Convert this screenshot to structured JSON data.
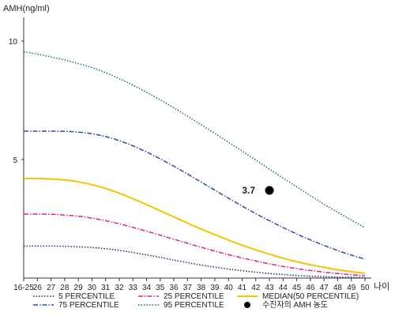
{
  "chart_data": {
    "type": "line",
    "title": "",
    "ylabel": "AMH(ng/ml)",
    "xlabel": "나이",
    "ylim": [
      0,
      11
    ],
    "yticks": [
      "10",
      "5"
    ],
    "ytick_values": [
      10,
      5
    ],
    "categories": [
      "16-25",
      "26",
      "27",
      "28",
      "29",
      "30",
      "31",
      "32",
      "33",
      "34",
      "35",
      "36",
      "37",
      "38",
      "39",
      "40",
      "41",
      "42",
      "43",
      "44",
      "45",
      "46",
      "47",
      "48",
      "49",
      "50"
    ],
    "series": [
      {
        "name": "5 PERCENTILE",
        "color": "#1f2a6b",
        "style": "dotted",
        "values": [
          1.35,
          1.35,
          1.35,
          1.34,
          1.32,
          1.29,
          1.24,
          1.17,
          1.08,
          0.98,
          0.87,
          0.76,
          0.65,
          0.55,
          0.46,
          0.38,
          0.31,
          0.25,
          0.19,
          0.15,
          0.11,
          0.08,
          0.06,
          0.04,
          0.03,
          0.02
        ]
      },
      {
        "name": "25 PERCENTILE",
        "color": "#e0218a",
        "style": "dashdot",
        "values": [
          2.7,
          2.7,
          2.69,
          2.66,
          2.61,
          2.53,
          2.42,
          2.29,
          2.14,
          1.98,
          1.81,
          1.64,
          1.47,
          1.3,
          1.14,
          0.99,
          0.85,
          0.72,
          0.6,
          0.49,
          0.4,
          0.32,
          0.25,
          0.19,
          0.14,
          0.1
        ]
      },
      {
        "name": "MEDIAN(50 PERCENTILE)",
        "color": "#f2c500",
        "style": "solid",
        "values": [
          4.2,
          4.2,
          4.18,
          4.14,
          4.06,
          3.94,
          3.78,
          3.58,
          3.35,
          3.1,
          2.84,
          2.58,
          2.32,
          2.07,
          1.83,
          1.6,
          1.39,
          1.19,
          1.01,
          0.84,
          0.69,
          0.56,
          0.45,
          0.35,
          0.27,
          0.2
        ]
      },
      {
        "name": "75 PERCENTILE",
        "color": "#2a4db5",
        "style": "dashdot",
        "values": [
          6.2,
          6.2,
          6.2,
          6.19,
          6.16,
          6.09,
          5.97,
          5.8,
          5.58,
          5.32,
          5.03,
          4.72,
          4.39,
          4.05,
          3.71,
          3.37,
          3.04,
          2.72,
          2.42,
          2.13,
          1.86,
          1.61,
          1.38,
          1.16,
          0.97,
          0.8
        ]
      },
      {
        "name": "95 PERCENTILE",
        "color": "#1a7a3a",
        "style": "dotted",
        "values": [
          9.55,
          9.45,
          9.33,
          9.2,
          9.05,
          8.88,
          8.67,
          8.42,
          8.14,
          7.84,
          7.52,
          7.18,
          6.83,
          6.47,
          6.1,
          5.73,
          5.36,
          4.98,
          4.6,
          4.22,
          3.85,
          3.48,
          3.12,
          2.78,
          2.45,
          2.12
        ]
      }
    ],
    "marker": {
      "name": "수진자의 AMH 농도",
      "x": "43",
      "y": 3.7,
      "label": "3.7",
      "color": "#000000"
    },
    "legend_position": "bottom",
    "grid": false
  }
}
